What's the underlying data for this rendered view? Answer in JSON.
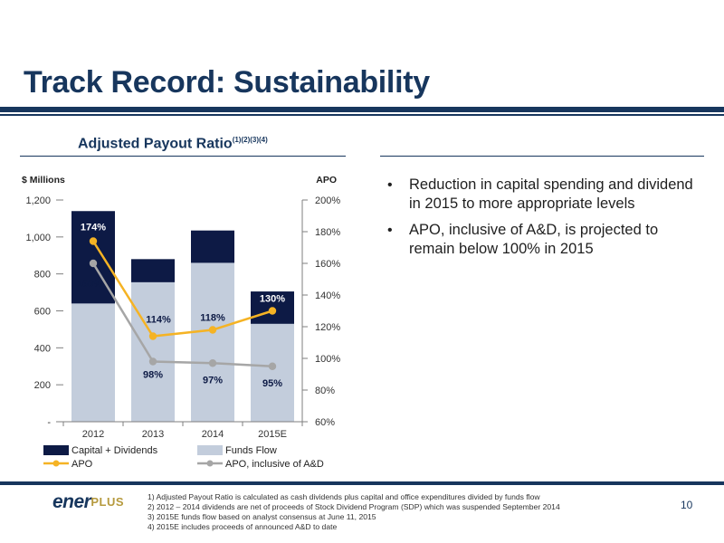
{
  "page": {
    "title": "Track Record: Sustainability",
    "chart_heading": "Adjusted Payout Ratio",
    "chart_heading_sup": "(1)(2)(3)(4)",
    "bullets": [
      "Reduction in capital spending and dividend in 2015 to more appropriate levels",
      "APO, inclusive of A&D, is projected to remain below 100% in 2015"
    ],
    "logo": {
      "part1": "ener",
      "part2": "PLUS"
    },
    "footnotes": [
      "1)  Adjusted Payout Ratio is calculated as cash dividends plus capital and office expenditures divided by funds flow",
      "2)  2012 – 2014 dividends are net of proceeds of Stock Dividend Program (SDP) which was suspended September 2014",
      "3)  2015E funds flow based on analyst consensus at June 11, 2015",
      "4)  2015E includes proceeds of announced A&D to date"
    ],
    "page_number": "10"
  },
  "colors": {
    "title": "#17365d",
    "capital_dividends": "#0d1a45",
    "funds_flow": "#c3cddc",
    "apo": "#f5b324",
    "apo_ad": "#a6a6a6",
    "logo_accent": "#b69a3e"
  },
  "chart_data": {
    "type": "bar",
    "categories": [
      "2012",
      "2013",
      "2014",
      "2015E"
    ],
    "ylabel": "$ Millions",
    "y2label": "APO",
    "ylim": [
      0,
      1200
    ],
    "y2lim": [
      0.6,
      2.0
    ],
    "yticks": [
      "-",
      "200",
      "400",
      "600",
      "800",
      "1,000",
      "1,200"
    ],
    "y2ticks": [
      "60%",
      "80%",
      "100%",
      "120%",
      "140%",
      "160%",
      "180%",
      "200%"
    ],
    "legend_placement": "bottom",
    "series": [
      {
        "name": "Capital + Dividends",
        "type": "bar",
        "axis": "left",
        "values": [
          1140,
          880,
          1035,
          705
        ]
      },
      {
        "name": "Funds Flow",
        "type": "bar",
        "axis": "left",
        "values": [
          640,
          755,
          860,
          530
        ]
      },
      {
        "name": "APO",
        "type": "line",
        "axis": "right",
        "values": [
          1.74,
          1.14,
          1.18,
          1.3
        ],
        "labels": [
          "174%",
          "114%",
          "118%",
          "130%"
        ]
      },
      {
        "name": "APO, inclusive of A&D",
        "type": "line",
        "axis": "right",
        "values": [
          1.6,
          0.98,
          0.97,
          0.95
        ],
        "labels": [
          "160%",
          "98%",
          "97%",
          "95%"
        ]
      }
    ]
  }
}
